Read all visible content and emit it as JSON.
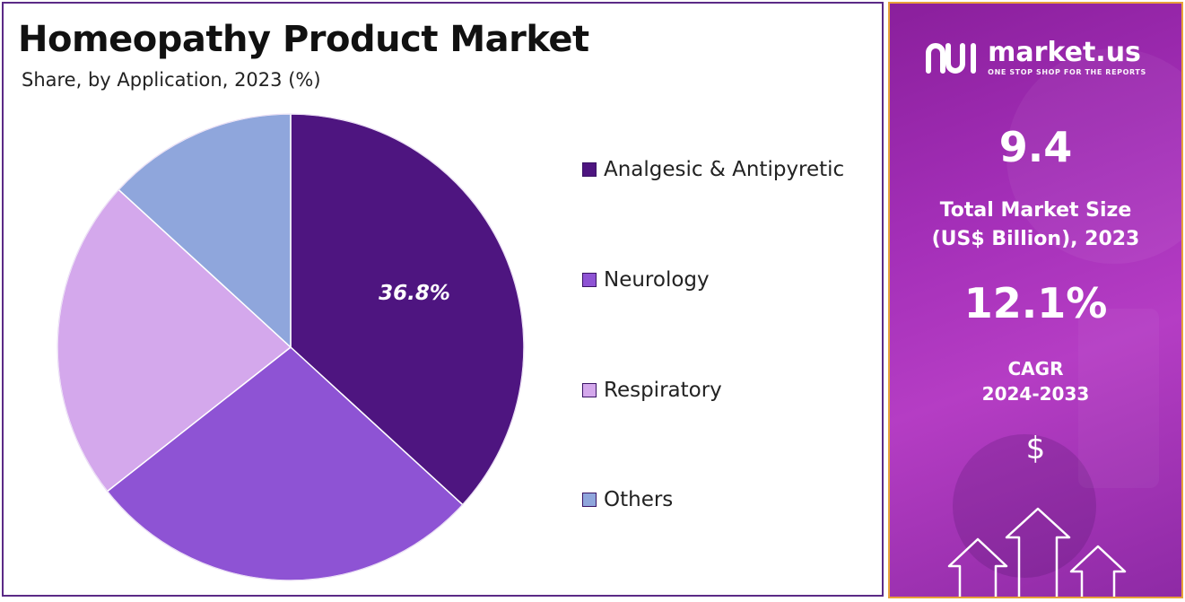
{
  "title": "Homeopathy Product Market",
  "subtitle": "Share, by Application, 2023 (%)",
  "chart_data": {
    "type": "pie",
    "categories": [
      "Analgesic & Antipyretic",
      "Neurology",
      "Respiratory",
      "Others"
    ],
    "values": [
      36.8,
      27.6,
      22.4,
      13.2
    ],
    "colors": [
      "#4e1580",
      "#8e53d4",
      "#d4a8ec",
      "#8fa6dc"
    ],
    "data_labels": [
      "36.8%",
      "",
      "",
      ""
    ],
    "start_angle_deg": 0,
    "direction": "clockwise",
    "legend_position": "right"
  },
  "legend": {
    "items": [
      {
        "label": "Analgesic & Antipyretic",
        "color": "#4e1580"
      },
      {
        "label": "Neurology",
        "color": "#8e53d4"
      },
      {
        "label": "Respiratory",
        "color": "#d4a8ec"
      },
      {
        "label": "Others",
        "color": "#8fa6dc"
      }
    ]
  },
  "info_panel": {
    "brand_name": "market.us",
    "brand_tagline": "ONE STOP SHOP FOR THE REPORTS",
    "brand_icon": "market-us-logo-icon",
    "market_size_value": "9.4",
    "market_size_label_line1": "Total Market Size",
    "market_size_label_line2": "(US$ Billion), 2023",
    "cagr_value": "12.1%",
    "cagr_label_line1": "CAGR",
    "cagr_label_line2": "2024-2033",
    "dollar_symbol": "$",
    "decor_icon": "growth-arrows-icon"
  }
}
